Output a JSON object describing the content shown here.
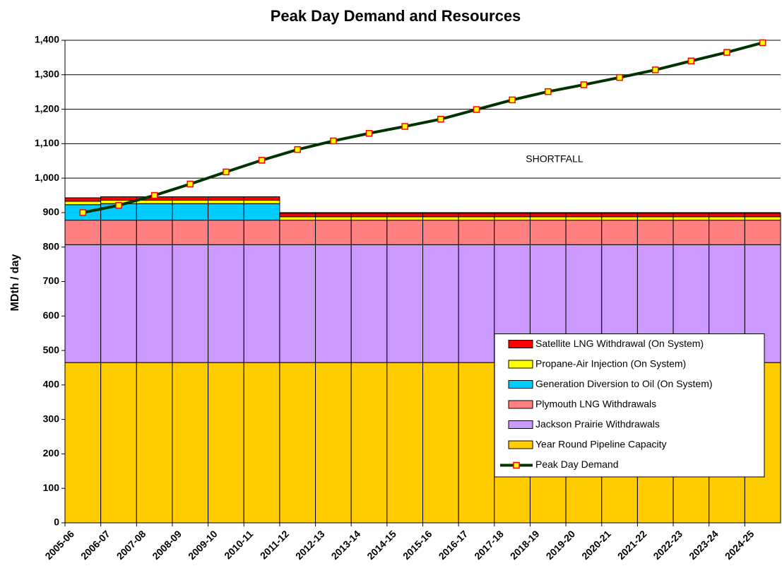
{
  "chart_data": {
    "type": "bar",
    "stacked": true,
    "title": "Peak Day Demand and Resources",
    "y_label": "MDth / day",
    "annotation": "SHORTFALL",
    "categories": [
      "2005-06",
      "2006-07",
      "2007-08",
      "2008-09",
      "2009-10",
      "2010-11",
      "2011-12",
      "2012-13",
      "2013-14",
      "2014-15",
      "2015-16",
      "2016-17",
      "2017-18",
      "2018-19",
      "2019-20",
      "2020-21",
      "2021-22",
      "2022-23",
      "2023-24",
      "2024-25"
    ],
    "series": [
      {
        "name": "Year Round Pipeline Capacity",
        "color": "#ffcc00",
        "values": [
          465,
          465,
          465,
          465,
          465,
          465,
          465,
          465,
          465,
          465,
          465,
          465,
          465,
          465,
          465,
          465,
          465,
          465,
          465,
          465
        ]
      },
      {
        "name": "Jackson Prairie Withdrawals",
        "color": "#cc99ff",
        "values": [
          342,
          342,
          342,
          342,
          342,
          342,
          342,
          342,
          342,
          342,
          342,
          342,
          342,
          342,
          342,
          342,
          342,
          342,
          342,
          342
        ]
      },
      {
        "name": "Plymouth LNG Withdrawals",
        "color": "#ff8080",
        "values": [
          71,
          71,
          71,
          71,
          71,
          71,
          71,
          71,
          71,
          71,
          71,
          71,
          71,
          71,
          71,
          71,
          71,
          71,
          71,
          71
        ]
      },
      {
        "name": "Generation Diversion to Oil (On System)",
        "color": "#00ccff",
        "values": [
          45,
          48,
          48,
          48,
          48,
          48,
          0,
          0,
          0,
          0,
          0,
          0,
          0,
          0,
          0,
          0,
          0,
          0,
          0,
          0
        ]
      },
      {
        "name": "Propane-Air Injection (On System)",
        "color": "#ffff00",
        "values": [
          10,
          10,
          10,
          10,
          10,
          10,
          10,
          10,
          10,
          10,
          10,
          10,
          10,
          10,
          10,
          10,
          10,
          10,
          10,
          10
        ]
      },
      {
        "name": "Satellite LNG Withdrawal (On System)",
        "color": "#ff0000",
        "values": [
          10,
          10,
          10,
          10,
          10,
          10,
          10,
          10,
          10,
          10,
          10,
          10,
          10,
          10,
          10,
          10,
          10,
          10,
          10,
          10
        ]
      },
      {
        "name": "Peak Day Demand",
        "type": "line",
        "color": "#003300",
        "marker_color": "#ffff00",
        "marker_edge": "#ff0000",
        "values": [
          900,
          921,
          950,
          983,
          1018,
          1052,
          1083,
          1108,
          1130,
          1150,
          1171,
          1199,
          1227,
          1251,
          1271,
          1292,
          1314,
          1340,
          1365,
          1393
        ]
      }
    ],
    "ylim": [
      0,
      1400
    ],
    "yticks": [
      0,
      100,
      200,
      300,
      400,
      500,
      600,
      700,
      800,
      900,
      {
        "value": 1000,
        "label": "1,000"
      },
      {
        "value": 1100,
        "label": "1,100"
      },
      {
        "value": 1200,
        "label": "1,200"
      },
      {
        "value": 1300,
        "label": "1,300"
      },
      {
        "value": 1400,
        "label": "1,400"
      }
    ],
    "grid": true,
    "legend": "lower right"
  }
}
